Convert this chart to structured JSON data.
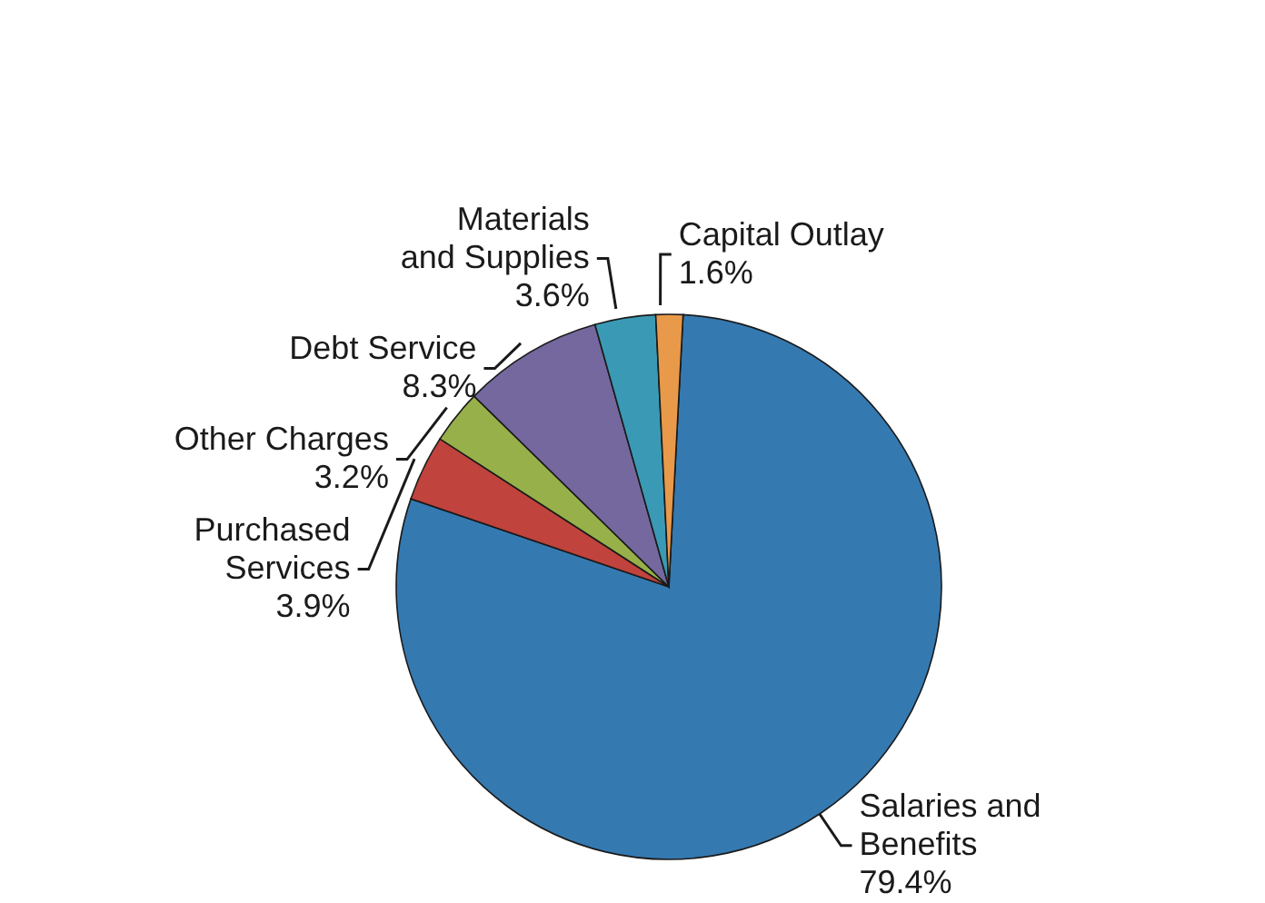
{
  "chart_data": {
    "type": "pie",
    "categories": [
      "Salaries and\nBenefits",
      "Purchased\nServices",
      "Other Charges",
      "Debt Service",
      "Materials\nand Supplies",
      "Capital Outlay"
    ],
    "values": [
      79.4,
      3.9,
      3.2,
      8.3,
      3.6,
      1.6
    ],
    "value_labels": [
      "79.4%",
      "3.9%",
      "3.2%",
      "8.3%",
      "3.6%",
      "1.6%"
    ],
    "colors": [
      "#3579b1",
      "#c0433d",
      "#97b04a",
      "#74689f",
      "#3a9ab5",
      "#e8994a"
    ],
    "legend": false
  }
}
